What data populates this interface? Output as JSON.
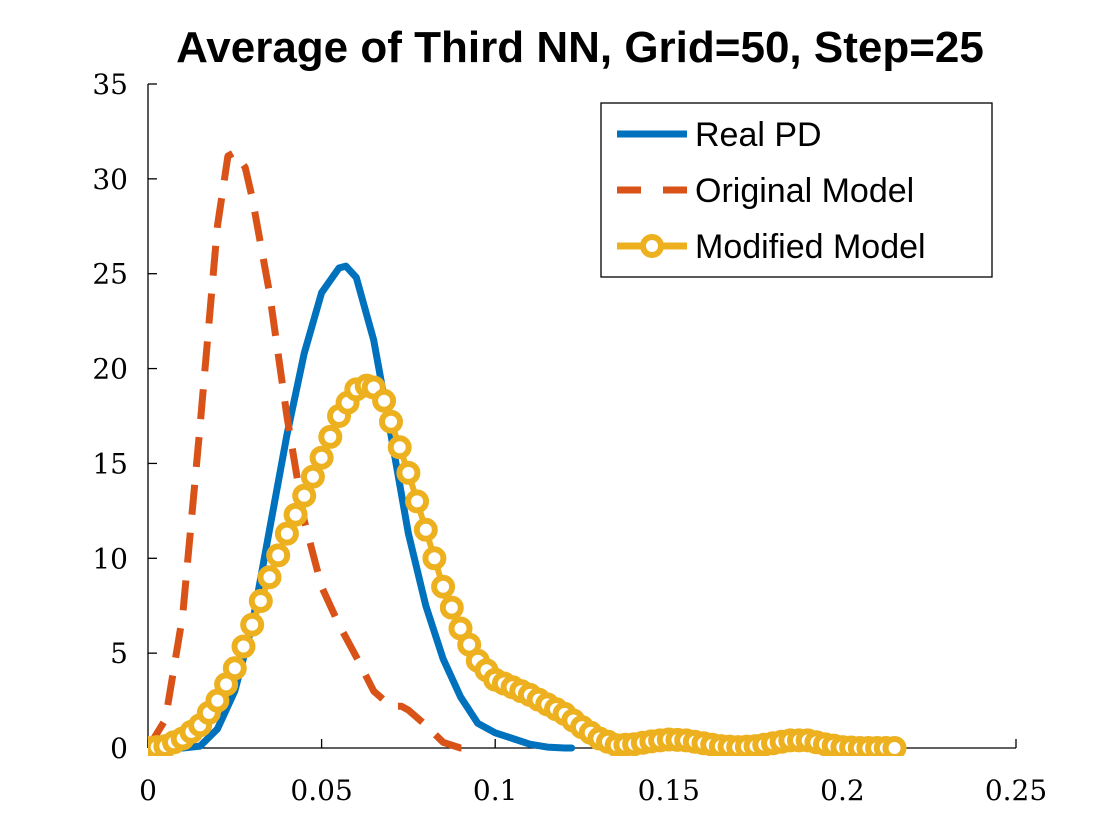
{
  "chart_data": {
    "type": "line",
    "title": "Average of Third NN, Grid=50, Step=25",
    "xlabel": "",
    "ylabel": "",
    "xlim": [
      0,
      0.25
    ],
    "ylim": [
      0,
      35
    ],
    "xticks": [
      0,
      0.05,
      0.1,
      0.15,
      0.2,
      0.25
    ],
    "xtick_labels": [
      "0",
      "0.05",
      "0.1",
      "0.15",
      "0.2",
      "0.25"
    ],
    "yticks": [
      0,
      5,
      10,
      15,
      20,
      25,
      30,
      35
    ],
    "ytick_labels": [
      "0",
      "5",
      "10",
      "15",
      "20",
      "25",
      "30",
      "35"
    ],
    "grid": false,
    "legend_position": "top-right",
    "series": [
      {
        "name": "Real PD",
        "style": "solid",
        "color": "#0072BD",
        "x": [
          0.0,
          0.01,
          0.015,
          0.02,
          0.025,
          0.03,
          0.035,
          0.04,
          0.045,
          0.05,
          0.055,
          0.057,
          0.06,
          0.065,
          0.07,
          0.075,
          0.08,
          0.085,
          0.09,
          0.095,
          0.1,
          0.105,
          0.11,
          0.115,
          0.12,
          0.122
        ],
        "y": [
          0.0,
          0.0,
          0.1,
          1.0,
          3.0,
          6.5,
          11.5,
          16.5,
          20.8,
          24.0,
          25.3,
          25.4,
          24.8,
          21.5,
          16.5,
          11.3,
          7.5,
          4.7,
          2.7,
          1.3,
          0.8,
          0.5,
          0.2,
          0.05,
          0.0,
          0.0
        ]
      },
      {
        "name": "Original Model",
        "style": "dashed",
        "color": "#D95319",
        "x": [
          0.0,
          0.005,
          0.01,
          0.015,
          0.02,
          0.023,
          0.025,
          0.028,
          0.03,
          0.035,
          0.04,
          0.045,
          0.05,
          0.055,
          0.06,
          0.065,
          0.07,
          0.073,
          0.075,
          0.08,
          0.085,
          0.09,
          0.092
        ],
        "y": [
          0.0,
          1.5,
          7.0,
          17.0,
          27.5,
          31.2,
          31.4,
          30.6,
          29.0,
          24.0,
          17.5,
          12.0,
          8.5,
          6.5,
          4.8,
          3.0,
          2.2,
          2.2,
          2.0,
          1.2,
          0.3,
          0.0,
          0.0
        ]
      },
      {
        "name": "Modified Model",
        "style": "dash-circle",
        "color": "#EDB120",
        "x": [
          0.0,
          0.005,
          0.01,
          0.015,
          0.02,
          0.025,
          0.03,
          0.035,
          0.04,
          0.045,
          0.05,
          0.055,
          0.06,
          0.063,
          0.065,
          0.068,
          0.07,
          0.075,
          0.08,
          0.085,
          0.09,
          0.095,
          0.1,
          0.105,
          0.11,
          0.115,
          0.12,
          0.125,
          0.13,
          0.135,
          0.14,
          0.145,
          0.15,
          0.155,
          0.16,
          0.165,
          0.17,
          0.175,
          0.18,
          0.185,
          0.19,
          0.195,
          0.2,
          0.205,
          0.21,
          0.215
        ],
        "y": [
          0.0,
          0.1,
          0.5,
          1.2,
          2.5,
          4.2,
          6.5,
          9.0,
          11.3,
          13.3,
          15.3,
          17.5,
          18.9,
          19.1,
          19.0,
          18.3,
          17.2,
          14.5,
          11.5,
          8.5,
          6.3,
          4.6,
          3.6,
          3.2,
          2.8,
          2.3,
          1.8,
          1.1,
          0.5,
          0.15,
          0.2,
          0.35,
          0.45,
          0.4,
          0.25,
          0.1,
          0.05,
          0.1,
          0.25,
          0.4,
          0.4,
          0.2,
          0.05,
          0.0,
          0.0,
          0.0
        ]
      }
    ]
  }
}
